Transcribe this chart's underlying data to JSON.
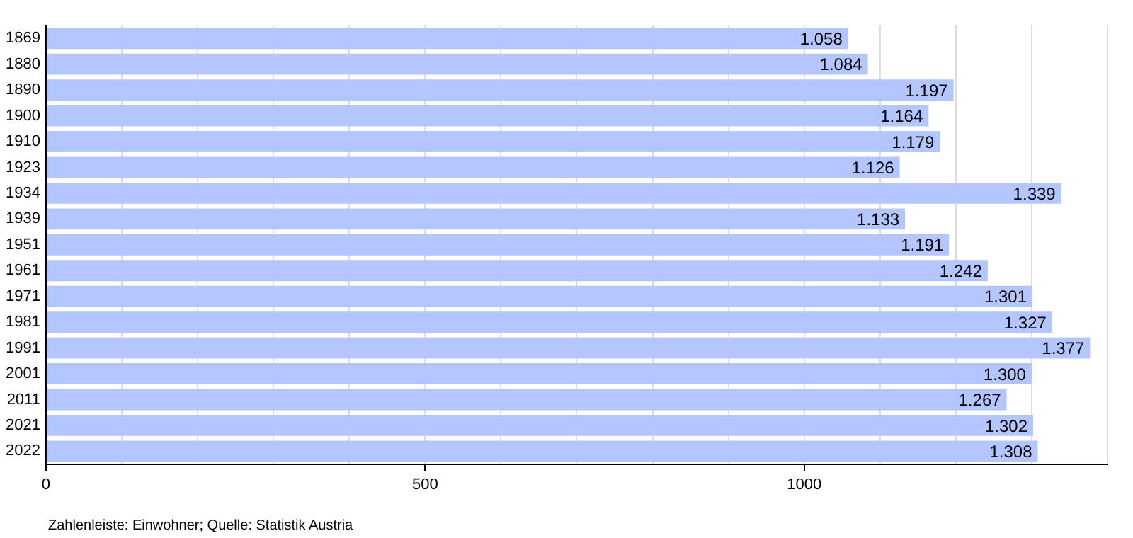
{
  "chart_data": {
    "type": "bar",
    "orientation": "horizontal",
    "categories": [
      "1869",
      "1880",
      "1890",
      "1900",
      "1910",
      "1923",
      "1934",
      "1939",
      "1951",
      "1961",
      "1971",
      "1981",
      "1991",
      "2001",
      "2011",
      "2021",
      "2022"
    ],
    "values": [
      1058,
      1084,
      1197,
      1164,
      1179,
      1126,
      1339,
      1133,
      1191,
      1242,
      1301,
      1327,
      1377,
      1300,
      1267,
      1302,
      1308
    ],
    "value_labels": [
      "1.058",
      "1.084",
      "1.197",
      "1.164",
      "1.179",
      "1.126",
      "1.339",
      "1.133",
      "1.191",
      "1.242",
      "1.301",
      "1.327",
      "1.377",
      "1.300",
      "1.267",
      "1.302",
      "1.308"
    ],
    "color": "#b3c6ff",
    "xlim": [
      0,
      1400
    ],
    "xticks": [
      0,
      {
        "value": 100,
        "label": null
      },
      {
        "value": 200,
        "label": null
      },
      {
        "value": 300,
        "label": null
      },
      {
        "value": 400,
        "label": null
      },
      500,
      {
        "value": 600,
        "label": null
      },
      {
        "value": 700,
        "label": null
      },
      {
        "value": 800,
        "label": null
      },
      {
        "value": 900,
        "label": null
      },
      1000,
      {
        "value": 1100,
        "label": null
      },
      {
        "value": 1200,
        "label": null
      },
      {
        "value": 1300,
        "label": null
      },
      {
        "value": 1400,
        "label": null
      }
    ],
    "grid": "x",
    "legend": false,
    "annotations": [
      "Zahlenleiste: Einwohner; Quelle: Statistik Austria"
    ]
  }
}
